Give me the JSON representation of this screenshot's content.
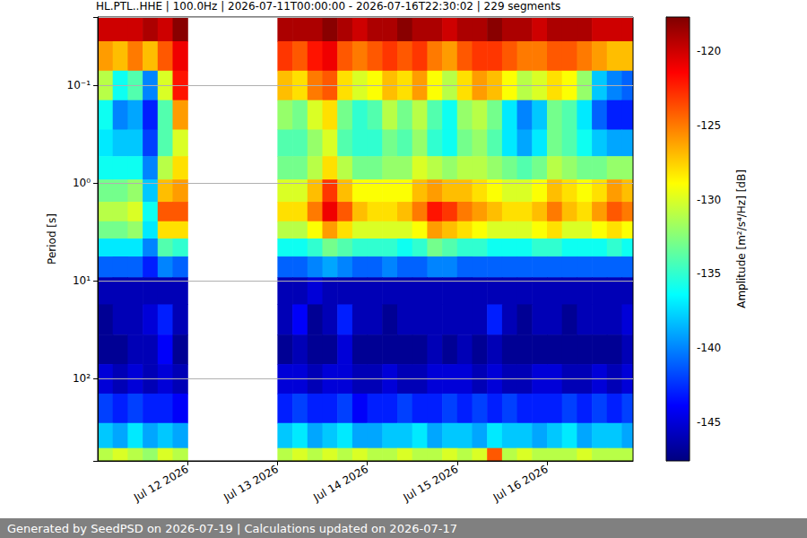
{
  "chart_data": {
    "type": "heatmap",
    "title": "HL.PTL..HHE | 100.0Hz | 2026-07-11T00:00:00 - 2026-07-16T22:30:02 | 229 segments",
    "footer": "Generated by SeedPSD on 2026-07-19 | Calculations updated on 2026-07-17",
    "ylabel": "Period [s]",
    "log": "y",
    "grid": true,
    "xlim": [
      "2026-07-11T00:00",
      "2026-07-16T23:00"
    ],
    "xticks": [
      {
        "value": "2026-07-12T00:00",
        "label": "Jul 12 2026"
      },
      {
        "value": "2026-07-13T00:00",
        "label": "Jul 13 2026"
      },
      {
        "value": "2026-07-14T00:00",
        "label": "Jul 14 2026"
      },
      {
        "value": "2026-07-15T00:00",
        "label": "Jul 15 2026"
      },
      {
        "value": "2026-07-16T00:00",
        "label": "Jul 16 2026"
      }
    ],
    "ylim": [
      0.02,
      690
    ],
    "yticks": [
      {
        "value": 0.1,
        "label": "10⁻¹"
      },
      {
        "value": 1,
        "label": "10⁰"
      },
      {
        "value": 10,
        "label": "10¹"
      },
      {
        "value": 100,
        "label": "10²"
      }
    ],
    "x": [
      "2026-07-11T00:00",
      "2026-07-11T04:00",
      "2026-07-11T08:00",
      "2026-07-11T12:00",
      "2026-07-11T16:00",
      "2026-07-11T20:00",
      "2026-07-12T00:00",
      "2026-07-12T04:00",
      "2026-07-12T08:00",
      "2026-07-12T12:00",
      "2026-07-12T16:00",
      "2026-07-12T20:00",
      "2026-07-13T00:00",
      "2026-07-13T04:00",
      "2026-07-13T08:00",
      "2026-07-13T12:00",
      "2026-07-13T16:00",
      "2026-07-13T20:00",
      "2026-07-14T00:00",
      "2026-07-14T04:00",
      "2026-07-14T08:00",
      "2026-07-14T12:00",
      "2026-07-14T16:00",
      "2026-07-14T20:00",
      "2026-07-15T00:00",
      "2026-07-15T04:00",
      "2026-07-15T08:00",
      "2026-07-15T12:00",
      "2026-07-15T16:00",
      "2026-07-15T20:00",
      "2026-07-16T00:00",
      "2026-07-16T04:00",
      "2026-07-16T08:00",
      "2026-07-16T12:00",
      "2026-07-16T16:00",
      "2026-07-16T20:00"
    ],
    "y": [
      0.025,
      0.05,
      0.1,
      0.2,
      0.4,
      0.7,
      1.2,
      2,
      3,
      4.5,
      7,
      12,
      25,
      50,
      100,
      200,
      400,
      650
    ],
    "values": [
      [
        -120,
        -120,
        -120,
        -119,
        -120,
        -118,
        null,
        null,
        null,
        null,
        null,
        null,
        -119,
        -119,
        -119,
        -118,
        -119,
        -120,
        -119,
        -119,
        -118,
        -119,
        -119,
        -120,
        -119,
        -119,
        -118,
        -119,
        -119,
        -120,
        -119,
        -119,
        -119,
        -120,
        -120,
        -120
      ],
      [
        -126,
        -127,
        -125,
        -127,
        -124,
        -121,
        null,
        null,
        null,
        null,
        null,
        null,
        -123,
        -124,
        -122,
        -121,
        -124,
        -125,
        -124,
        -123,
        -124,
        -123,
        -125,
        -126,
        -124,
        -123,
        -123,
        -124,
        -125,
        -125,
        -124,
        -124,
        -125,
        -126,
        -127,
        -127
      ],
      [
        -131,
        -136,
        -134,
        -140,
        -130,
        -122,
        null,
        null,
        null,
        null,
        null,
        null,
        -127,
        -128,
        -125,
        -124,
        -128,
        -130,
        -129,
        -127,
        -128,
        -126,
        -129,
        -131,
        -128,
        -126,
        -127,
        -129,
        -131,
        -130,
        -128,
        -129,
        -132,
        -138,
        -140,
        -141
      ],
      [
        -136,
        -140,
        -139,
        -143,
        -134,
        -126,
        null,
        null,
        null,
        null,
        null,
        null,
        -132,
        -133,
        -130,
        -128,
        -133,
        -135,
        -134,
        -131,
        -133,
        -131,
        -134,
        -136,
        -132,
        -131,
        -133,
        -137,
        -140,
        -138,
        -133,
        -134,
        -137,
        -141,
        -143,
        -143
      ],
      [
        -137,
        -138,
        -138,
        -142,
        -134,
        -130,
        null,
        null,
        null,
        null,
        null,
        null,
        -134,
        -134,
        -132,
        -130,
        -134,
        -135,
        -135,
        -133,
        -134,
        -132,
        -135,
        -136,
        -133,
        -132,
        -134,
        -137,
        -139,
        -137,
        -133,
        -134,
        -136,
        -138,
        -139,
        -139
      ],
      [
        -136,
        -136,
        -136,
        -140,
        -131,
        -128,
        null,
        null,
        null,
        null,
        null,
        null,
        -133,
        -133,
        -131,
        -128,
        -131,
        -133,
        -133,
        -132,
        -132,
        -130,
        -131,
        -132,
        -131,
        -131,
        -132,
        -133,
        -134,
        -133,
        -131,
        -132,
        -133,
        -133,
        -132,
        -132
      ],
      [
        -133,
        -133,
        -132,
        -138,
        -127,
        -126,
        null,
        null,
        null,
        null,
        null,
        null,
        -130,
        -130,
        -127,
        -123,
        -127,
        -129,
        -129,
        -129,
        -129,
        -127,
        -126,
        -127,
        -127,
        -128,
        -129,
        -130,
        -130,
        -129,
        -127,
        -128,
        -129,
        -128,
        -126,
        -127
      ],
      [
        -131,
        -131,
        -130,
        -136,
        -124,
        -124,
        null,
        null,
        null,
        null,
        null,
        null,
        -128,
        -128,
        -125,
        -121,
        -124,
        -127,
        -128,
        -128,
        -127,
        -125,
        -122,
        -123,
        -125,
        -126,
        -127,
        -128,
        -128,
        -127,
        -125,
        -127,
        -128,
        -126,
        -124,
        -125
      ],
      [
        -133,
        -133,
        -132,
        -137,
        -128,
        -128,
        null,
        null,
        null,
        null,
        null,
        null,
        -131,
        -131,
        -129,
        -126,
        -128,
        -130,
        -130,
        -130,
        -130,
        -129,
        -126,
        -127,
        -128,
        -129,
        -130,
        -130,
        -130,
        -129,
        -128,
        -130,
        -130,
        -129,
        -128,
        -129
      ],
      [
        -137,
        -137,
        -137,
        -140,
        -134,
        -135,
        null,
        null,
        null,
        null,
        null,
        null,
        -136,
        -136,
        -135,
        -133,
        -134,
        -135,
        -135,
        -135,
        -136,
        -135,
        -133,
        -134,
        -135,
        -135,
        -136,
        -136,
        -136,
        -135,
        -135,
        -136,
        -136,
        -136,
        -135,
        -136
      ],
      [
        -141,
        -141,
        -141,
        -143,
        -140,
        -141,
        null,
        null,
        null,
        null,
        null,
        null,
        -141,
        -141,
        -140,
        -139,
        -140,
        -141,
        -141,
        -140,
        -141,
        -141,
        -140,
        -140,
        -141,
        -141,
        -141,
        -141,
        -141,
        -141,
        -141,
        -141,
        -141,
        -141,
        -141,
        -141
      ],
      [
        -146,
        -146,
        -146,
        -146,
        -146,
        -146,
        null,
        null,
        null,
        null,
        null,
        null,
        -146,
        -146,
        -145,
        -146,
        -146,
        -146,
        -146,
        -146,
        -146,
        -146,
        -146,
        -146,
        -146,
        -146,
        -146,
        -146,
        -146,
        -146,
        -146,
        -146,
        -146,
        -146,
        -146,
        -146
      ],
      [
        -147,
        -146,
        -146,
        -145,
        -143,
        -146,
        null,
        null,
        null,
        null,
        null,
        null,
        -146,
        -144,
        -147,
        -146,
        -143,
        -146,
        -146,
        -147,
        -146,
        -146,
        -146,
        -146,
        -146,
        -146,
        -143,
        -146,
        -147,
        -146,
        -146,
        -147,
        -146,
        -146,
        -146,
        -145
      ],
      [
        -147,
        -147,
        -146,
        -146,
        -144,
        -147,
        null,
        null,
        null,
        null,
        null,
        null,
        -147,
        -146,
        -147,
        -147,
        -145,
        -147,
        -147,
        -147,
        -147,
        -147,
        -146,
        -147,
        -146,
        -147,
        -146,
        -147,
        -147,
        -147,
        -147,
        -147,
        -147,
        -147,
        -147,
        -146
      ],
      [
        -145,
        -146,
        -145,
        -146,
        -145,
        -146,
        null,
        null,
        null,
        null,
        null,
        null,
        -145,
        -145,
        -146,
        -145,
        -145,
        -146,
        -146,
        -145,
        -146,
        -146,
        -145,
        -145,
        -145,
        -146,
        -145,
        -146,
        -146,
        -145,
        -145,
        -146,
        -146,
        -145,
        -146,
        -145
      ],
      [
        -142,
        -143,
        -142,
        -143,
        -143,
        -144,
        null,
        null,
        null,
        null,
        null,
        null,
        -143,
        -142,
        -143,
        -143,
        -142,
        -144,
        -143,
        -143,
        -142,
        -143,
        -143,
        -142,
        -143,
        -142,
        -143,
        -142,
        -143,
        -143,
        -143,
        -142,
        -143,
        -142,
        -143,
        -142
      ],
      [
        -138,
        -139,
        -137,
        -139,
        -138,
        -139,
        null,
        null,
        null,
        null,
        null,
        null,
        -138,
        -137,
        -139,
        -138,
        -137,
        -139,
        -139,
        -138,
        -138,
        -137,
        -139,
        -138,
        -138,
        -139,
        -137,
        -138,
        -138,
        -139,
        -138,
        -137,
        -139,
        -138,
        -138,
        -139
      ],
      [
        -131,
        -130,
        -131,
        -132,
        -130,
        -131,
        null,
        null,
        null,
        null,
        null,
        null,
        -131,
        -130,
        -131,
        -130,
        -131,
        -130,
        -131,
        -131,
        -130,
        -131,
        -131,
        -130,
        -131,
        -130,
        -124,
        -131,
        -130,
        -131,
        -131,
        -131,
        -130,
        -131,
        -131,
        -131
      ]
    ],
    "colorbar": {
      "label": "Amplitude [m²/s⁴/Hz] [dB]",
      "lim": [
        -147.6,
        -117.7
      ],
      "ticks": [
        -145,
        -140,
        -135,
        -130,
        -125,
        -120
      ]
    }
  }
}
